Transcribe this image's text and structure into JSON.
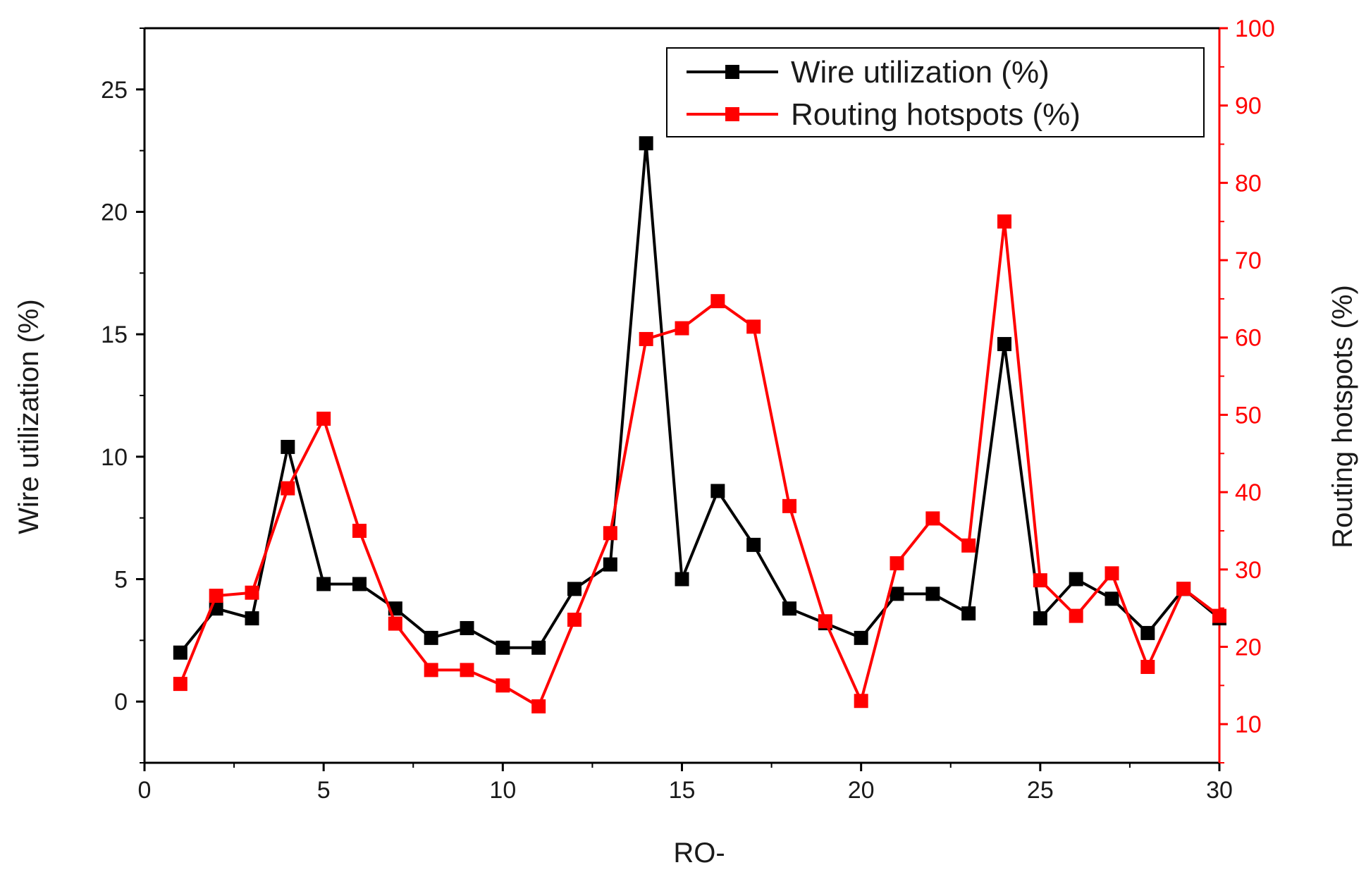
{
  "chart_data": {
    "type": "line",
    "title": "",
    "xlabel": "RO-",
    "ylabel_left": "Wire utilization (%)",
    "ylabel_right": "Routing hotspots (%)",
    "xlim": [
      0,
      30
    ],
    "ylim_left": [
      -2.5,
      27.5
    ],
    "ylim_right": [
      5,
      100
    ],
    "x_ticks": [
      0,
      5,
      10,
      15,
      20,
      25,
      30
    ],
    "y_left_ticks": [
      0,
      5,
      10,
      15,
      20,
      25
    ],
    "y_right_ticks": [
      10,
      20,
      30,
      40,
      50,
      60,
      70,
      80,
      90,
      100
    ],
    "grid": false,
    "legend_position": "top-right",
    "colors": {
      "wire": "#000000",
      "routing": "#ff0000",
      "axis_right": "#ff0000"
    },
    "x": [
      1,
      2,
      3,
      4,
      5,
      6,
      7,
      8,
      9,
      10,
      11,
      12,
      13,
      14,
      15,
      16,
      17,
      18,
      19,
      20,
      21,
      22,
      23,
      24,
      25,
      26,
      27,
      28,
      29,
      30
    ],
    "series": [
      {
        "name": "Wire utilization (%)",
        "axis": "left",
        "values": [
          2.0,
          3.8,
          3.4,
          10.4,
          4.8,
          4.8,
          3.8,
          2.6,
          3.0,
          2.2,
          2.2,
          4.6,
          5.6,
          22.8,
          5.0,
          8.6,
          6.4,
          3.8,
          3.2,
          2.6,
          4.4,
          4.4,
          3.6,
          14.6,
          3.4,
          5.0,
          4.2,
          2.8,
          4.6,
          3.4
        ]
      },
      {
        "name": "Routing hotspots (%)",
        "axis": "right",
        "values": [
          15.2,
          26.6,
          27.0,
          40.5,
          49.5,
          35.0,
          23.0,
          17.0,
          17.0,
          15.0,
          12.3,
          23.5,
          34.7,
          59.8,
          61.2,
          64.7,
          61.4,
          38.2,
          23.3,
          13.0,
          30.8,
          36.6,
          33.1,
          75.0,
          28.6,
          24.0,
          29.5,
          17.4,
          27.5,
          24.0
        ]
      }
    ]
  }
}
